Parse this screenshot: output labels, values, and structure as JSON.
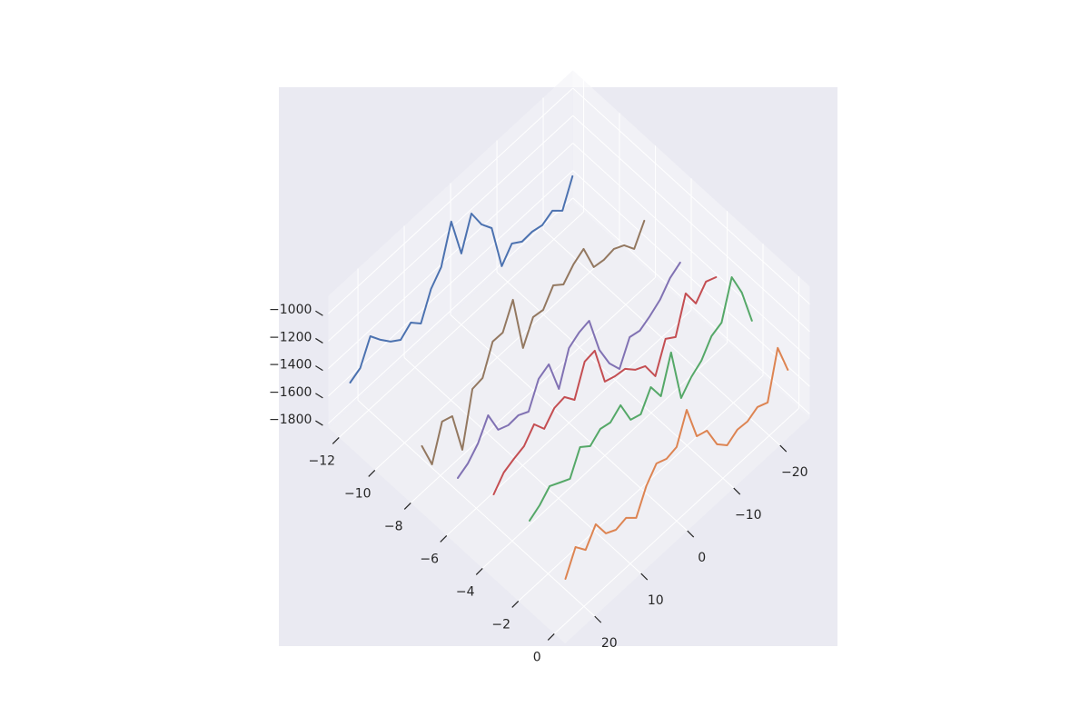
{
  "chart_data": {
    "type": "line3d",
    "grid": true,
    "xlim": [
      -12.6,
      0.6
    ],
    "ylim": [
      -26.4,
      26.4
    ],
    "zlim": [
      -1830,
      -870
    ],
    "xticks": [
      {
        "value": -12,
        "label": "−12"
      },
      {
        "value": -10,
        "label": "−10"
      },
      {
        "value": -8,
        "label": "−8"
      },
      {
        "value": -6,
        "label": "−6"
      },
      {
        "value": -4,
        "label": "−4"
      },
      {
        "value": -2,
        "label": "−2"
      },
      0
    ],
    "yticks": [
      {
        "value": -20,
        "label": "−20"
      },
      {
        "value": -10,
        "label": "−10"
      },
      0,
      10,
      20
    ],
    "zticks": [
      {
        "value": -1800,
        "label": "−1800"
      },
      {
        "value": -1600,
        "label": "−1600"
      },
      {
        "value": -1400,
        "label": "−1400"
      },
      {
        "value": -1200,
        "label": "−1200"
      },
      {
        "value": -1000,
        "label": "−1000"
      }
    ],
    "y": [
      24,
      21.82,
      19.64,
      17.45,
      15.27,
      13.09,
      10.91,
      8.73,
      6.55,
      4.36,
      2.18,
      0,
      -2.18,
      -4.36,
      -6.55,
      -8.73,
      -10.91,
      -13.09,
      -15.27,
      -17.45,
      -19.64,
      -21.82,
      -24
    ],
    "series": [
      {
        "color": "#4c72b0",
        "x": -12,
        "z": [
          -1505,
          -1467,
          -1303,
          -1397,
          -1478,
          -1533,
          -1475,
          -1550,
          -1366,
          -1275,
          -1011,
          -1311,
          -1088,
          -1235,
          -1330,
          -1675,
          -1578,
          -1632,
          -1628,
          -1649,
          -1611,
          -1679,
          -1495
        ]
      },
      {
        "color": "#dd8452",
        "x": 0,
        "z": [
          -1505,
          -1341,
          -1429,
          -1311,
          -1445,
          -1487,
          -1468,
          -1536,
          -1372,
          -1275,
          -1309,
          -1291,
          -1088,
          -1348,
          -1376,
          -1543,
          -1618,
          -1573,
          -1581,
          -1543,
          -1578,
          -1248,
          -1475
        ]
      },
      {
        "color": "#55a868",
        "x": -2,
        "z": [
          -1319,
          -1275,
          -1203,
          -1245,
          -1286,
          -1123,
          -1183,
          -1126,
          -1147,
          -1089,
          -1263,
          -1291,
          -1161,
          -1295,
          -1045,
          -1444,
          -1360,
          -1308,
          -1197,
          -1166,
          -903,
          -1083,
          -1356
        ]
      },
      {
        "color": "#c44e52",
        "x": -4,
        "z": [
          -1366,
          -1275,
          -1243,
          -1219,
          -1127,
          -1228,
          -1144,
          -1132,
          -1220,
          -1010,
          -998,
          -1291,
          -1320,
          -1334,
          -1409,
          -1450,
          -1591,
          -1387,
          -1442,
          -1192,
          -1333,
          -1242,
          -1277
        ]
      },
      {
        "color": "#8172b3",
        "x": -6,
        "z": [
          -1485,
          -1447,
          -1369,
          -1232,
          -1405,
          -1440,
          -1435,
          -1477,
          -1306,
          -1268,
          -1515,
          -1285,
          -1240,
          -1222,
          -1502,
          -1669,
          -1777,
          -1613,
          -1634,
          -1596,
          -1545,
          -1454,
          -1409
        ]
      },
      {
        "color": "#937860",
        "x": -8,
        "z": [
          -1491,
          -1692,
          -1448,
          -1477,
          -1789,
          -1414,
          -1402,
          -1205,
          -1207,
          -1036,
          -1455,
          -1298,
          -1313,
          -1202,
          -1264,
          -1185,
          -1141,
          -1341,
          -1356,
          -1344,
          -1386,
          -1480,
          -1343
        ]
      }
    ]
  }
}
